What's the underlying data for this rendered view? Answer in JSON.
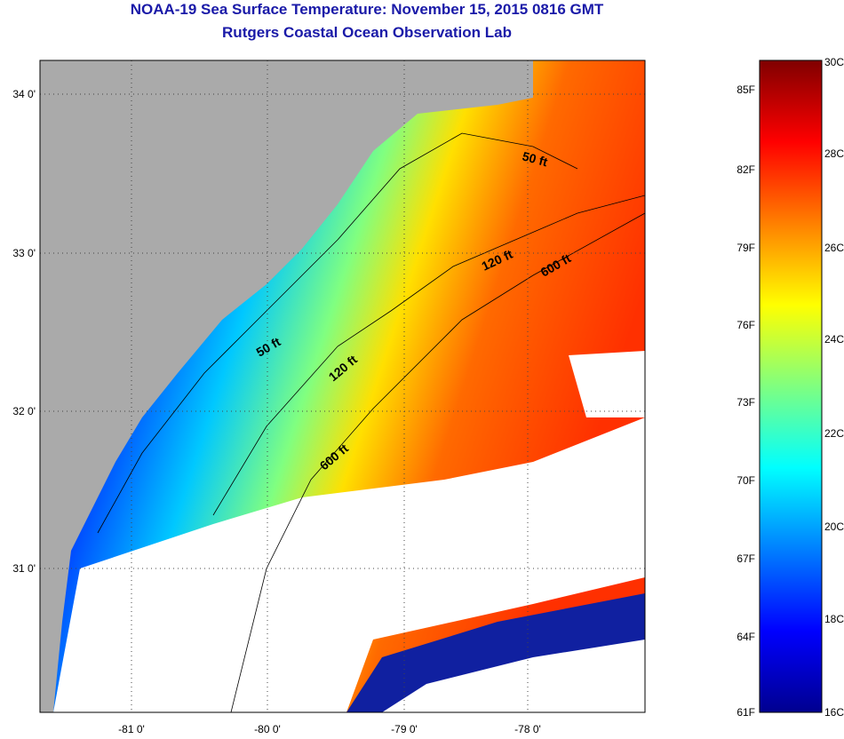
{
  "title": {
    "line1": "NOAA-19 Sea Surface Temperature:  November 15, 2015 0816 GMT",
    "line2": "Rutgers Coastal Ocean Observation Lab"
  },
  "map": {
    "lat_labels": [
      "34 0'",
      "33 0'",
      "32 0'",
      "31 0'"
    ],
    "lon_labels": [
      "-81 0'",
      "-80 0'",
      "-79 0'",
      "-78 0'"
    ],
    "contour_labels": [
      "50 ft",
      "50 ft",
      "120 ft",
      "120 ft",
      "600 ft",
      "600 ft"
    ],
    "colors": {
      "land": "#aaaaaa",
      "cloud": "#ffffff"
    }
  },
  "colorbar": {
    "fahrenheit": [
      "85F",
      "82F",
      "79F",
      "76F",
      "73F",
      "70F",
      "67F",
      "64F",
      "61F"
    ],
    "celsius": [
      "30C",
      "28C",
      "26C",
      "24C",
      "22C",
      "20C",
      "18C",
      "16C"
    ],
    "range_c": [
      16,
      30
    ]
  }
}
